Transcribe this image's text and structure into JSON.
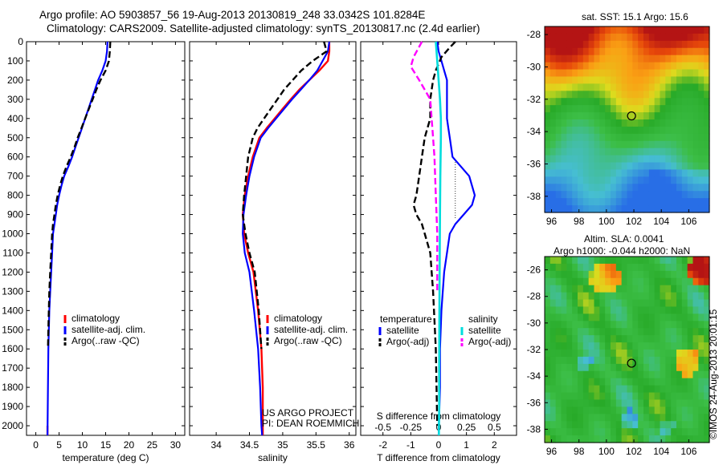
{
  "header": {
    "line1": "Argo profile: AO 5903857_56 19-Aug-2013 20130819_248 33.0342S 101.8284E",
    "line2": "Climatology: CARS2009. Satellite-adjusted climatology: synTS_20130817.nc (2.4d earlier)"
  },
  "credits": {
    "project": "US ARGO PROJECT",
    "pi": "PI: DEAN ROEMMICH"
  },
  "footer": {
    "stamp": "©IMOS 24-Aug-2013 20:01:15"
  },
  "maps": {
    "sst": {
      "title": "sat. SST: 15.1 Argo: 15.6",
      "xticks": [
        "96",
        "98",
        "100",
        "102",
        "104",
        "106"
      ],
      "yticks": [
        "-28",
        "-30",
        "-32",
        "-34",
        "-36",
        "-38"
      ],
      "xlim": [
        95.5,
        107.5
      ],
      "ylim": [
        -39,
        -27.5
      ],
      "marker": [
        101.83,
        -33.03
      ]
    },
    "sla": {
      "title1": "Altim. SLA: 0.0041",
      "title2": "Argo h1000: -0.044 h2000: NaN",
      "xticks": [
        "96",
        "98",
        "100",
        "102",
        "104",
        "106"
      ],
      "yticks": [
        "-26",
        "-28",
        "-30",
        "-32",
        "-34",
        "-36",
        "-38"
      ],
      "xlim": [
        95.5,
        107.5
      ],
      "ylim": [
        -39,
        -25
      ],
      "marker": [
        101.83,
        -33.03
      ]
    }
  },
  "chart_data": [
    {
      "type": "line",
      "xlabel": "temperature (deg C)",
      "xticks": [
        "0",
        "5",
        "10",
        "15",
        "20",
        "25",
        "30"
      ],
      "xlim": [
        -2,
        32
      ],
      "ylim": [
        0,
        2050
      ],
      "yticks": [
        "0",
        "100",
        "200",
        "300",
        "400",
        "500",
        "600",
        "700",
        "800",
        "900",
        "1000",
        "1100",
        "1200",
        "1300",
        "1400",
        "1500",
        "1600",
        "1700",
        "1800",
        "1900",
        "2000"
      ],
      "legend": [
        "climatology",
        "satellite-adj. clim.",
        "Argo(..raw -QC)"
      ],
      "series": [
        {
          "name": "climatology",
          "color": "#ff0000",
          "width": 2.4,
          "x": [
            2.5,
            2.5,
            2.5
          ],
          "y": [
            2000,
            2025,
            2050
          ]
        },
        {
          "name": "satellite-adj. clim.",
          "color": "#0000ff",
          "width": 2.2,
          "x": [
            15.4,
            15.3,
            15.0,
            14.3,
            13.4,
            12.7,
            12.0,
            11.3,
            10.6,
            9.9,
            9.2,
            8.5,
            7.8,
            7.0,
            6.1,
            5.5,
            5.0,
            4.6,
            4.3,
            4.0,
            3.7,
            3.5,
            3.3,
            3.1,
            2.9,
            2.8,
            2.7,
            2.6,
            2.5
          ],
          "y": [
            0,
            50,
            100,
            150,
            200,
            250,
            300,
            350,
            400,
            450,
            500,
            550,
            600,
            650,
            700,
            750,
            800,
            850,
            900,
            950,
            1000,
            1100,
            1200,
            1300,
            1400,
            1500,
            1600,
            1800,
            2050
          ]
        },
        {
          "name": "Argo(..raw -QC)",
          "color": "#000000",
          "width": 2.4,
          "dash": "8 4",
          "x": [
            16.0,
            15.9,
            15.7,
            15.0,
            13.9,
            13.0,
            12.2,
            11.4,
            10.6,
            9.8,
            9.0,
            8.3,
            7.5,
            6.6,
            5.8,
            5.2,
            4.7,
            4.3,
            4.0,
            3.7,
            3.5,
            3.3,
            3.1,
            2.9,
            2.8,
            2.7,
            2.6
          ],
          "y": [
            0,
            50,
            100,
            150,
            200,
            250,
            300,
            350,
            400,
            450,
            500,
            550,
            600,
            650,
            700,
            750,
            800,
            850,
            900,
            950,
            1000,
            1100,
            1200,
            1300,
            1400,
            1500,
            1600
          ]
        }
      ]
    },
    {
      "type": "line",
      "xlabel": "salinity",
      "xticks": [
        "34",
        "34.5",
        "35",
        "35.5",
        "36"
      ],
      "xlim": [
        33.6,
        36.1
      ],
      "ylim": [
        0,
        2050
      ],
      "legend": [
        "climatology",
        "satellite-adj. clim.",
        "Argo(..raw -QC)"
      ],
      "credit_project": "US ARGO PROJECT",
      "credit_pi": "PI: DEAN ROEMMICH",
      "series": [
        {
          "name": "climatology",
          "color": "#ff0000",
          "width": 2.4,
          "x": [
            35.7,
            35.7,
            35.68,
            35.55,
            35.4,
            35.25,
            35.12,
            35.0,
            34.88,
            34.76,
            34.65,
            34.55,
            34.48,
            34.43,
            34.4,
            34.42,
            34.48,
            34.56,
            34.63,
            34.68,
            34.7,
            34.7,
            34.7
          ],
          "y": [
            0,
            50,
            100,
            150,
            200,
            250,
            300,
            350,
            400,
            450,
            500,
            600,
            700,
            800,
            900,
            1000,
            1100,
            1200,
            1400,
            1600,
            1800,
            2000,
            2050
          ]
        },
        {
          "name": "satellite-adj. clim.",
          "color": "#0000ff",
          "width": 2.2,
          "x": [
            35.7,
            35.68,
            35.6,
            35.52,
            35.4,
            35.27,
            35.14,
            35.02,
            34.9,
            34.78,
            34.67,
            34.57,
            34.5,
            34.45,
            34.41,
            34.4,
            34.43,
            34.5,
            34.57,
            34.63,
            34.66,
            34.68,
            34.69
          ],
          "y": [
            0,
            50,
            100,
            150,
            200,
            250,
            300,
            350,
            400,
            450,
            500,
            600,
            700,
            800,
            900,
            1000,
            1100,
            1200,
            1400,
            1600,
            1800,
            2000,
            2050
          ]
        },
        {
          "name": "Argo(..raw -QC)",
          "color": "#000000",
          "width": 2.4,
          "dash": "8 4",
          "x": [
            35.62,
            35.66,
            35.45,
            35.28,
            35.15,
            35.02,
            34.92,
            34.82,
            34.72,
            34.62,
            34.55,
            34.48,
            34.45,
            34.42,
            34.4,
            34.44,
            34.5,
            34.58,
            34.64,
            34.68
          ],
          "y": [
            0,
            50,
            100,
            150,
            200,
            250,
            300,
            350,
            400,
            450,
            500,
            600,
            700,
            800,
            900,
            1000,
            1100,
            1200,
            1400,
            1600
          ]
        }
      ]
    },
    {
      "type": "line",
      "xlabel": "T difference from climatology",
      "xlabel_top": "S difference from climatology",
      "xticks": [
        "-2",
        "-1",
        "0",
        "1",
        "2"
      ],
      "xticks_top": [
        "-0.5",
        "-0.25",
        "0",
        "0.25",
        "0.5"
      ],
      "xlim": [
        -2.8,
        2.8
      ],
      "ylim": [
        0,
        2050
      ],
      "legend_title_t": "temperature",
      "legend_title_s": "salinity",
      "legend_t": [
        "satellite",
        "Argo(-adj)"
      ],
      "legend_s": [
        "satellite",
        "Argo(-adj)"
      ],
      "series": [
        {
          "name": "T satellite",
          "color": "#0000ff",
          "width": 2.2,
          "x": [
            -0.05,
            0.0,
            0.1,
            0.2,
            0.3,
            0.3,
            0.3,
            0.35,
            0.4,
            0.45,
            0.5,
            0.8,
            1.1,
            1.3,
            1.2,
            0.9,
            0.6,
            0.4,
            0.3,
            0.2,
            0.1,
            0.05,
            0.05,
            0.0
          ],
          "y": [
            0,
            50,
            100,
            150,
            200,
            300,
            400,
            450,
            500,
            550,
            600,
            650,
            700,
            800,
            850,
            900,
            950,
            1000,
            1100,
            1200,
            1400,
            1600,
            1800,
            2050
          ]
        },
        {
          "name": "T Argo(-adj)",
          "color": "#000000",
          "width": 2.4,
          "dash": "8 4",
          "x": [
            0.6,
            0.4,
            0.1,
            -0.1,
            -0.2,
            -0.3,
            -0.3,
            -0.4,
            -0.5,
            -0.6,
            -0.7,
            -0.8,
            -0.9,
            -0.8,
            -0.6,
            -0.5,
            -0.3,
            -0.2,
            -0.1,
            -0.05
          ],
          "y": [
            0,
            30,
            80,
            150,
            200,
            300,
            400,
            450,
            500,
            600,
            700,
            800,
            850,
            900,
            950,
            1000,
            1100,
            1300,
            1600,
            2000
          ]
        },
        {
          "name": "S satellite",
          "color": "#00dddd",
          "width": 2.6,
          "x": [
            -0.1,
            -0.05,
            0.0,
            0.05,
            0.08,
            0.08,
            0.06,
            0.05,
            0.04,
            0.03,
            0.02,
            0.02,
            0.01
          ],
          "y": [
            0,
            100,
            200,
            300,
            400,
            500,
            700,
            900,
            1100,
            1400,
            1700,
            1900,
            2050
          ]
        },
        {
          "name": "S Argo(-adj)",
          "color": "#ff00ff",
          "width": 2.4,
          "dash": "8 4",
          "x": [
            -0.6,
            -0.9,
            -1.0,
            -0.7,
            -0.5,
            -0.3,
            -0.25,
            -0.2,
            -0.15,
            -0.1,
            -0.05,
            -0.05
          ],
          "y": [
            0,
            80,
            130,
            200,
            250,
            300,
            400,
            500,
            600,
            800,
            1000,
            1300
          ]
        }
      ]
    }
  ]
}
